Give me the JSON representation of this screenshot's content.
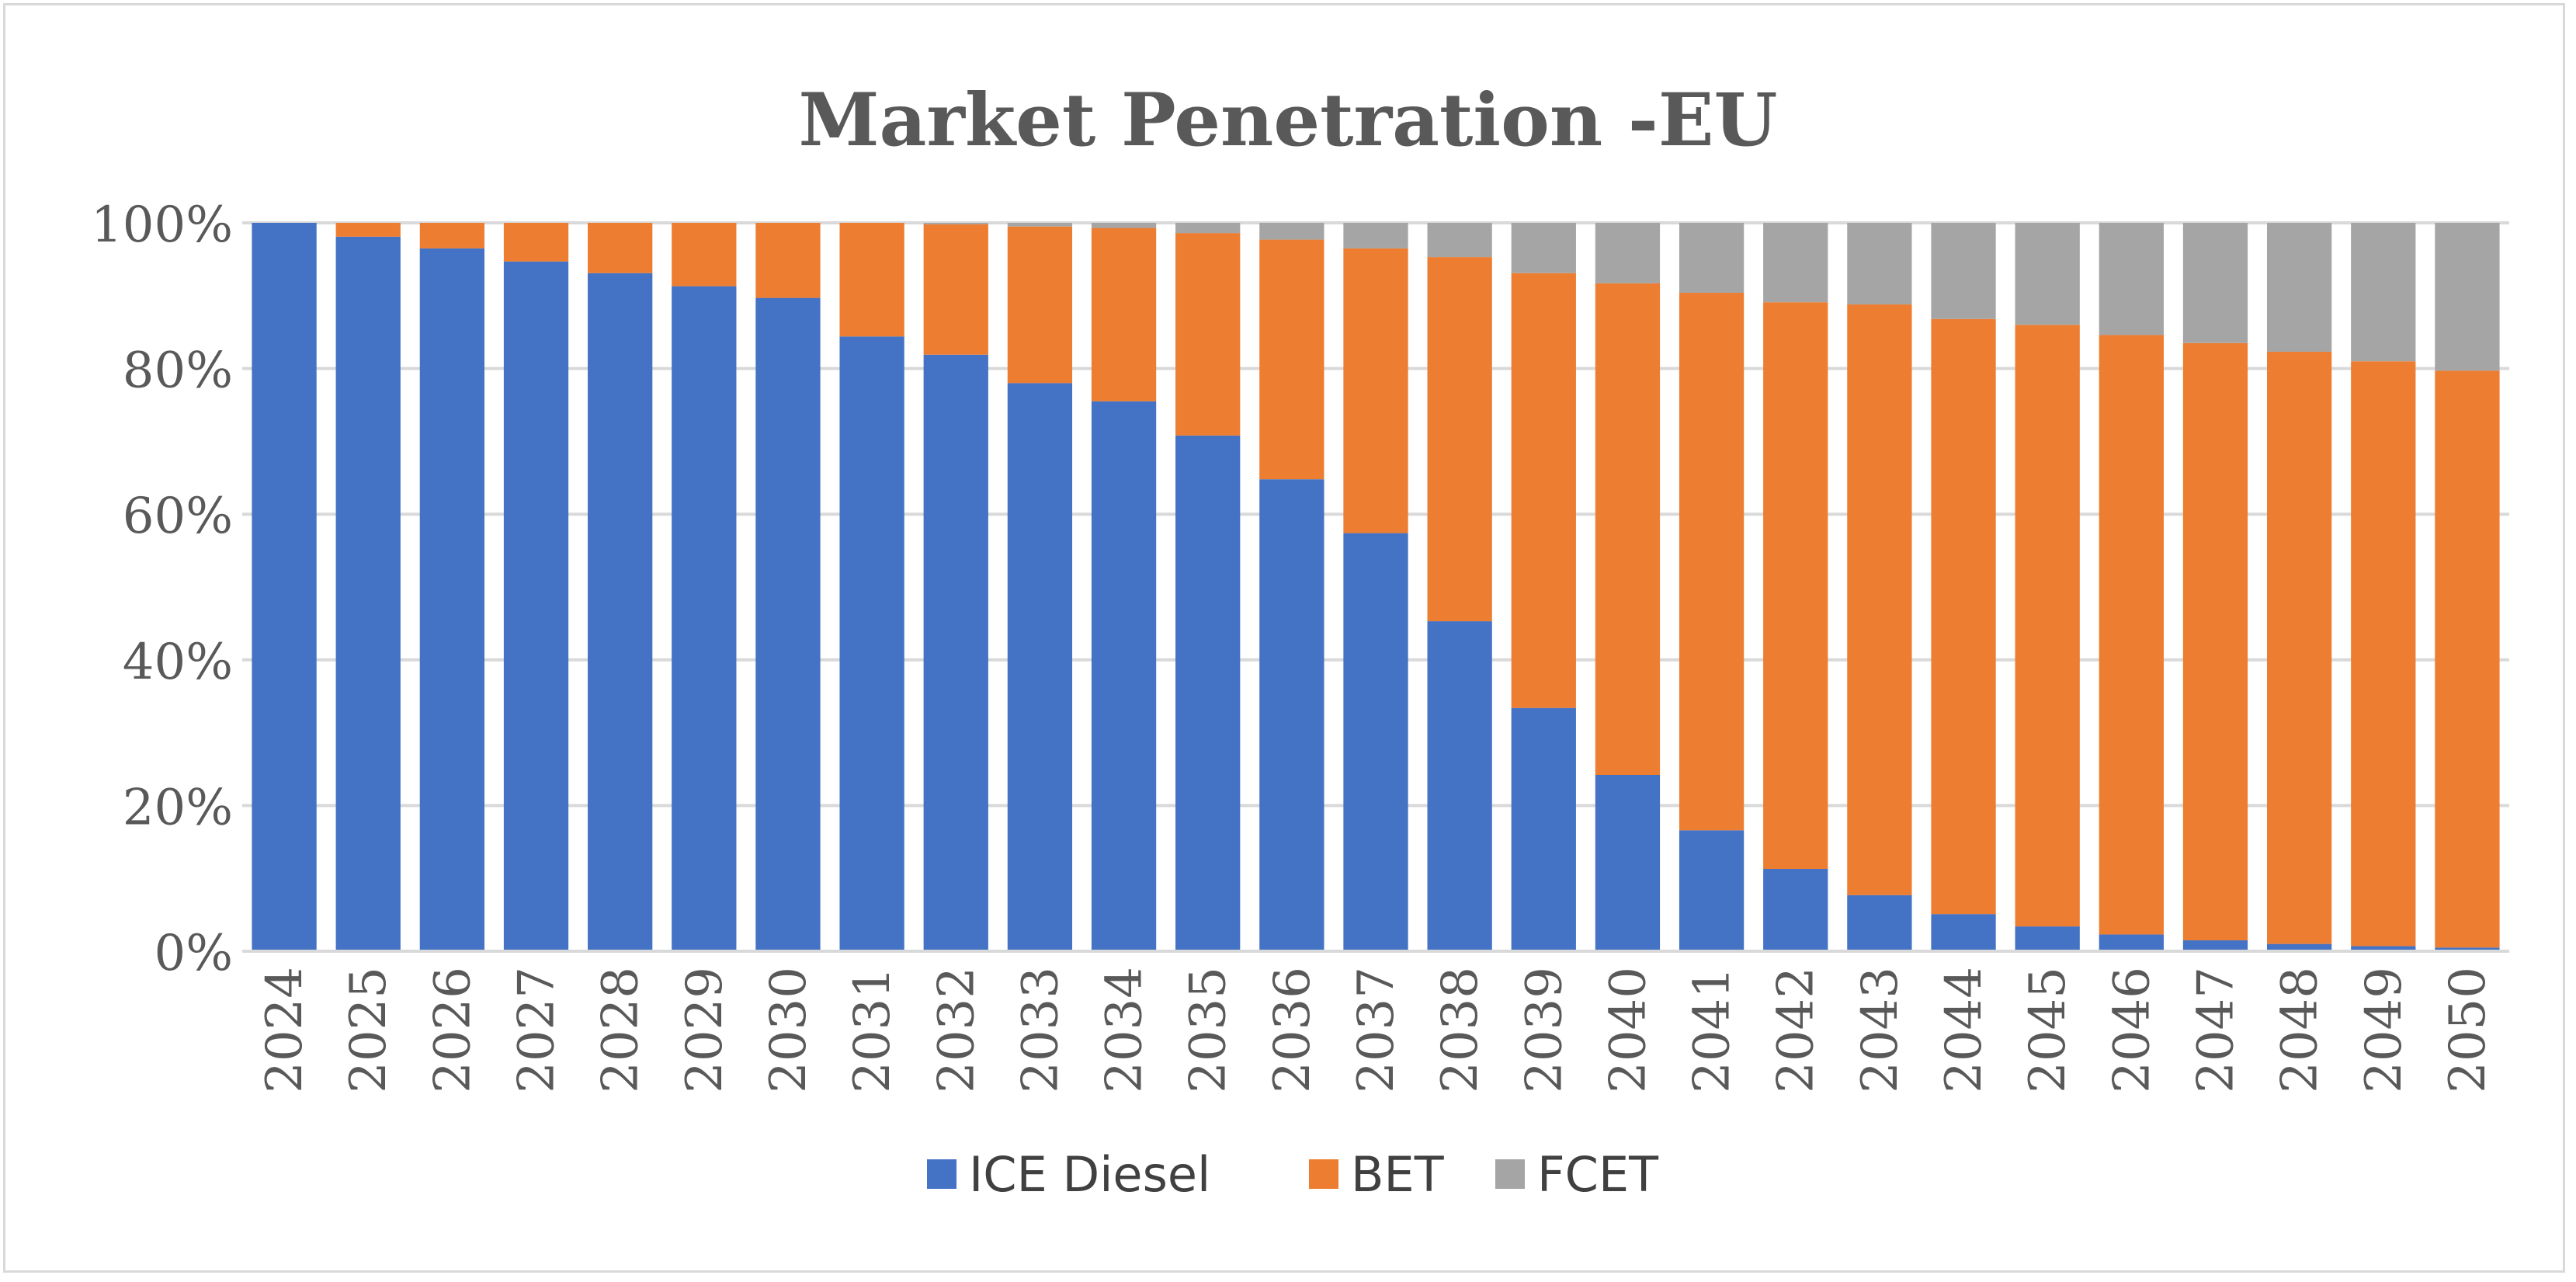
{
  "chart_data": {
    "type": "bar",
    "stacked": true,
    "title": "Market Penetration -EU",
    "xlabel": "",
    "ylabel": "",
    "ylim": [
      0,
      100
    ],
    "y_ticks": [
      "0%",
      "20%",
      "40%",
      "60%",
      "80%",
      "100%"
    ],
    "grid": true,
    "legend_position": "bottom",
    "categories": [
      "2024",
      "2025",
      "2026",
      "2027",
      "2028",
      "2029",
      "2030",
      "2031",
      "2032",
      "2033",
      "2034",
      "2035",
      "2036",
      "2037",
      "2038",
      "2039",
      "2040",
      "2041",
      "2042",
      "2043",
      "2044",
      "2045",
      "2046",
      "2047",
      "2048",
      "2049",
      "2050"
    ],
    "series": [
      {
        "name": "ICE Diesel",
        "color": "#4472c4",
        "values": [
          100,
          98.1,
          96.5,
          94.7,
          93.1,
          91.3,
          89.7,
          84.4,
          81.9,
          78,
          75.5,
          70.8,
          64.8,
          57.4,
          45.3,
          33.4,
          24.2,
          16.6,
          11.3,
          7.7,
          5.1,
          3.4,
          2.3,
          1.5,
          1,
          0.7,
          0.5
        ]
      },
      {
        "name": "BET",
        "color": "#ed7d31",
        "values": [
          0,
          1.9,
          3.5,
          5.3,
          6.9,
          8.7,
          10.3,
          15.6,
          17.9,
          21.5,
          23.8,
          27.8,
          32.9,
          39.1,
          50,
          59.7,
          67.5,
          73.8,
          77.8,
          81.1,
          81.7,
          82.6,
          82.3,
          82,
          81.3,
          80.3,
          79.2
        ]
      },
      {
        "name": "FCET",
        "color": "#a5a5a5",
        "values": [
          0,
          0,
          0,
          0,
          0,
          0,
          0,
          0,
          0.2,
          0.5,
          0.7,
          1.4,
          2.3,
          3.5,
          4.7,
          6.9,
          8.3,
          9.6,
          10.9,
          11.2,
          13.2,
          14,
          15.4,
          16.5,
          17.7,
          19,
          20.3
        ]
      }
    ]
  }
}
